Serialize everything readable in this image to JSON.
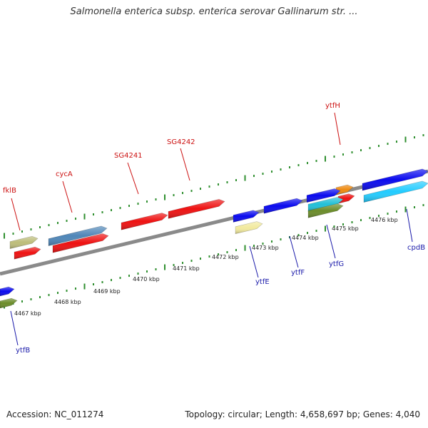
{
  "title": "Salmonella enterica subsp. enterica serovar Gallinarum str. ...",
  "footer": {
    "accession": "Accession: NC_011274",
    "summary": "Topology: circular; Length: 4,658,697 bp; Genes: 4,040"
  },
  "colors": {
    "backbone": "#8a8a8a",
    "tick": "#2f8f2f",
    "label_forward": "#cc1111",
    "label_reverse": "#1a1aaa"
  },
  "scale": {
    "ticks": [
      {
        "label": "4467 kbp"
      },
      {
        "label": "4468 kbp"
      },
      {
        "label": "4469 kbp"
      },
      {
        "label": "4470 kbp"
      },
      {
        "label": "4471 kbp"
      },
      {
        "label": "4472 kbp"
      },
      {
        "label": "4473 kbp"
      },
      {
        "label": "4474 kbp"
      },
      {
        "label": "4475 kbp"
      },
      {
        "label": "4476 kbp"
      }
    ]
  },
  "genes": [
    {
      "name": "fklB",
      "color": "#bdbd7a",
      "strand": "forward"
    },
    {
      "name": "cycA",
      "color": "#4f86b8",
      "strand": "forward"
    },
    {
      "name": "SG4241",
      "color": "#ee1111",
      "strand": "forward"
    },
    {
      "name": "SG4242",
      "color": "#ee1111",
      "strand": "forward"
    },
    {
      "name": "ytfH",
      "color": "#ee8a10",
      "strand": "forward"
    },
    {
      "name": "ytfB",
      "color": "#0a0aee",
      "strand": "reverse"
    },
    {
      "name": "ytfE",
      "color": "#0a0aee",
      "strand": "reverse"
    },
    {
      "name": "ytfF",
      "color": "#0a0aee",
      "strand": "reverse"
    },
    {
      "name": "ytfG",
      "color": "#0a0aee",
      "strand": "reverse"
    },
    {
      "name": "cpdB",
      "color": "#0a0aee",
      "strand": "reverse"
    }
  ],
  "other_features": [
    {
      "color": "#ee1111"
    },
    {
      "color": "#ee1111"
    },
    {
      "color": "#ee1111"
    },
    {
      "color": "#6b8c2a"
    },
    {
      "color": "#f2ea9e"
    },
    {
      "color": "#20c0d8"
    },
    {
      "color": "#6b8c2a"
    },
    {
      "color": "#22ccff"
    }
  ]
}
